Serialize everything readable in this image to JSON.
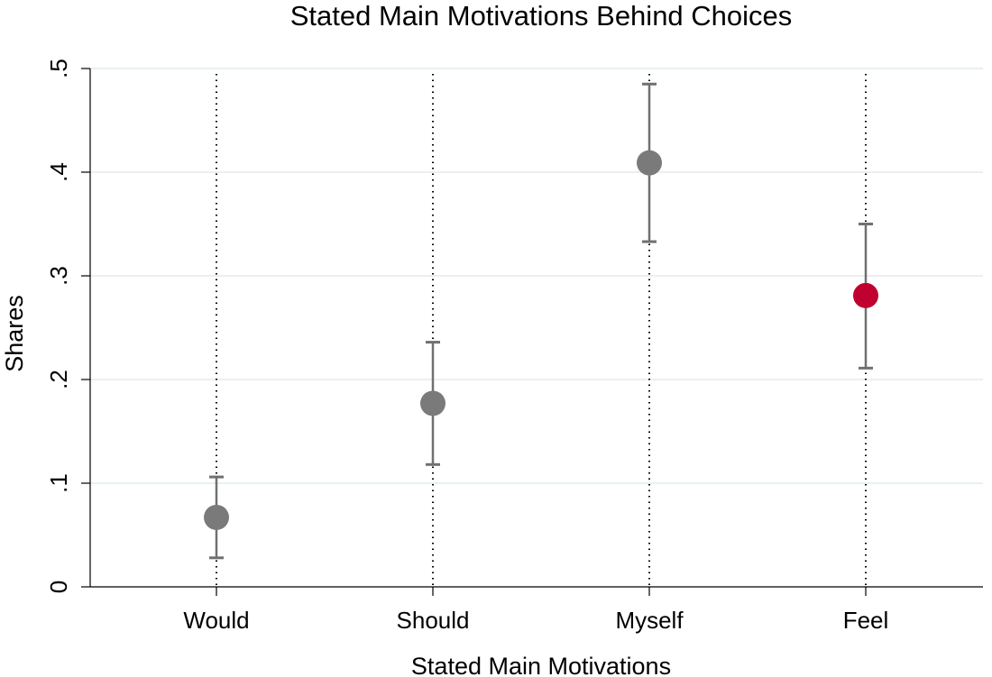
{
  "chart_data": {
    "type": "scatter",
    "title": "Stated Main Motivations Behind Choices",
    "xlabel": "Stated Main Motivations",
    "ylabel": "Shares",
    "ylim": [
      0,
      0.5
    ],
    "yticks": [
      0,
      0.1,
      0.2,
      0.3,
      0.4,
      0.5
    ],
    "ytick_labels": [
      "0",
      ".1",
      ".2",
      ".3",
      ".4",
      ".5"
    ],
    "categories": [
      "Would",
      "Should",
      "Myself",
      "Feel"
    ],
    "values": [
      0.067,
      0.177,
      0.409,
      0.281
    ],
    "ci_low": [
      0.028,
      0.118,
      0.333,
      0.211
    ],
    "ci_high": [
      0.106,
      0.236,
      0.485,
      0.35
    ],
    "point_colors": [
      "#7a7a7a",
      "#7a7a7a",
      "#7a7a7a",
      "#c0002f"
    ],
    "grid": true,
    "legend": "none"
  }
}
